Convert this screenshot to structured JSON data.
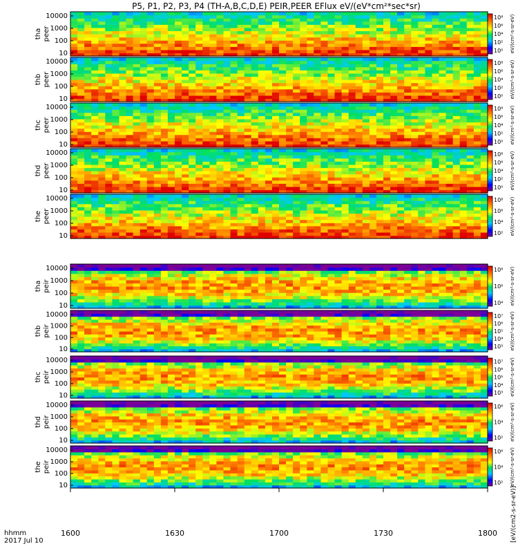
{
  "title": "P5, P1, P2, P3, P4 (TH-A,B,C,D,E) PEIR,PEER EFlux eV/(eV*cm²*sec*sr)",
  "chart_data": {
    "type": "heatmap",
    "x_axis": {
      "range": [
        "1600",
        "1800"
      ],
      "tick_labels": [
        "1600",
        "1630",
        "1700",
        "1730",
        "1800"
      ],
      "label_line1": "hhmm",
      "label_line2": "2017 Jul 10"
    },
    "y_scale": "log",
    "y_range": [
      10,
      20000
    ],
    "y_tick_labels": [
      "10000",
      "1000",
      "100",
      "10"
    ],
    "colorbar_unit_label": "[eV/(cm2-s-sr-eV)]",
    "panels": [
      {
        "probe": "tha",
        "species": "peer",
        "label1": "tha",
        "label2": "peer",
        "cb_ticks": [
          "10⁸",
          "10⁶",
          "10⁴",
          "10²",
          "10⁰"
        ],
        "cb_label": "eV/(cm²-s-sr-eV)"
      },
      {
        "probe": "thb",
        "species": "peer",
        "label1": "thb",
        "label2": "peer",
        "cb_ticks": [
          "10⁸",
          "10⁶",
          "10⁴",
          "10²",
          "10⁰"
        ],
        "cb_label": "eV/(cm²-s-sr-eV)"
      },
      {
        "probe": "thc",
        "species": "peer",
        "label1": "thc",
        "label2": "peer",
        "cb_ticks": [
          "10⁸",
          "10⁶",
          "10⁴",
          "10²",
          "10⁰"
        ],
        "cb_label": "eV/(cm²-s-sr-eV)"
      },
      {
        "probe": "thd",
        "species": "peer",
        "label1": "thd",
        "label2": "peer",
        "cb_ticks": [
          "10⁸",
          "10⁶",
          "10⁴",
          "10²",
          "10⁰"
        ],
        "cb_label": "eV/(cm²-s-sr-eV)"
      },
      {
        "probe": "the",
        "species": "peer",
        "label1": "the",
        "label2": "peer",
        "cb_ticks": [
          "10⁸",
          "10⁶",
          "10⁴",
          "10²"
        ],
        "cb_label": "eV/(cm²-s-sr-eV)"
      },
      {
        "probe": "tha",
        "species": "peir",
        "label1": "tha",
        "label2": "peir",
        "cb_ticks": [
          "10⁸",
          "10⁶",
          "10⁴"
        ],
        "cb_label": "eV/(cm²-s-sr-eV)"
      },
      {
        "probe": "thb",
        "species": "peir",
        "label1": "thb",
        "label2": "peir",
        "cb_ticks": [
          "10⁷",
          "10⁶",
          "10⁵",
          "10⁴",
          "10³"
        ],
        "cb_label": "eV/(cm²-s-sr-eV)"
      },
      {
        "probe": "thc",
        "species": "peir",
        "label1": "thc",
        "label2": "peir",
        "cb_ticks": [
          "10⁷",
          "10⁶",
          "10⁵",
          "10⁴",
          "10³"
        ],
        "cb_label": "eV/(cm²-s-sr-eV)"
      },
      {
        "probe": "thd",
        "species": "peir",
        "label1": "thd",
        "label2": "peir",
        "cb_ticks": [
          "10⁶",
          "10⁴",
          "10²"
        ],
        "cb_label": "eV/(cm²-s-sr-eV)"
      },
      {
        "probe": "the",
        "species": "peir",
        "label1": "the",
        "label2": "peir",
        "cb_ticks": [
          "10⁶",
          "10⁴",
          "10²"
        ],
        "cb_label": "eV/(cm²-s-sr-eV)"
      }
    ]
  }
}
